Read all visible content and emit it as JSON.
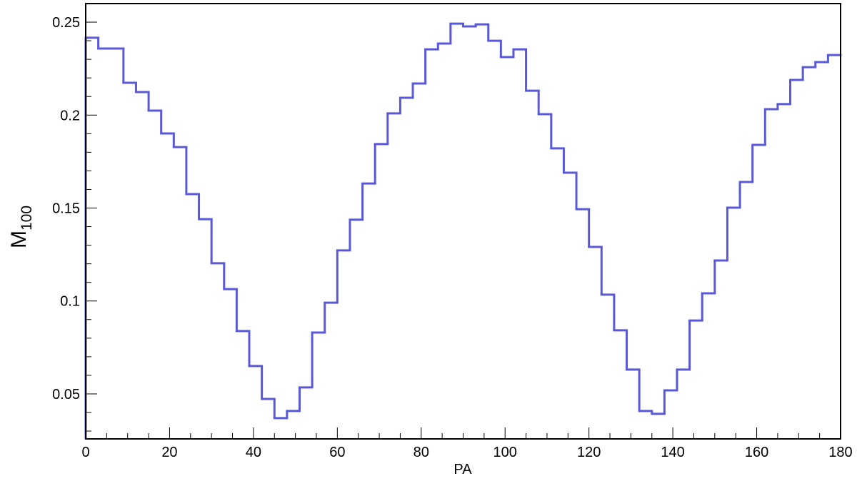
{
  "chart_data": {
    "type": "histogram",
    "xlabel": "PA",
    "ylabel": {
      "text": "M",
      "subscript": "100"
    },
    "bins": [
      0,
      3,
      6,
      9,
      12,
      15,
      18,
      21,
      24,
      27,
      30,
      33,
      36,
      39,
      42,
      45,
      48,
      51,
      54,
      57,
      60,
      63,
      66,
      69,
      72,
      75,
      78,
      81,
      84,
      87,
      90,
      93,
      96,
      99,
      102,
      105,
      108,
      111,
      114,
      117,
      120,
      123,
      126,
      129,
      132,
      135,
      138,
      141,
      144,
      147,
      150,
      153,
      156,
      159,
      162,
      165,
      168,
      171,
      174,
      177,
      180
    ],
    "values": [
      0.2416,
      0.2358,
      0.2358,
      0.2174,
      0.2124,
      0.2024,
      0.1901,
      0.1828,
      0.1575,
      0.144,
      0.1203,
      0.1064,
      0.0838,
      0.065,
      0.0473,
      0.037,
      0.0408,
      0.0535,
      0.083,
      0.0991,
      0.1272,
      0.1437,
      0.1632,
      0.1844,
      0.2009,
      0.2093,
      0.217,
      0.2354,
      0.2385,
      0.2492,
      0.2477,
      0.2488,
      0.24,
      0.2312,
      0.2354,
      0.2131,
      0.2005,
      0.1821,
      0.169,
      0.1494,
      0.1291,
      0.1034,
      0.0842,
      0.0631,
      0.0408,
      0.0393,
      0.0519,
      0.0631,
      0.0895,
      0.1041,
      0.1218,
      0.1502,
      0.164,
      0.184,
      0.2032,
      0.2059,
      0.2189,
      0.2258,
      0.2285,
      0.2323
    ],
    "color": "#5858d8",
    "xlim": [
      0,
      180
    ],
    "xticks": [
      0,
      20,
      40,
      60,
      80,
      100,
      120,
      140,
      160,
      180
    ],
    "ylim": [
      0.0258,
      0.26
    ],
    "yticks": [
      0.05,
      0.1,
      0.15,
      0.2,
      0.25
    ]
  }
}
